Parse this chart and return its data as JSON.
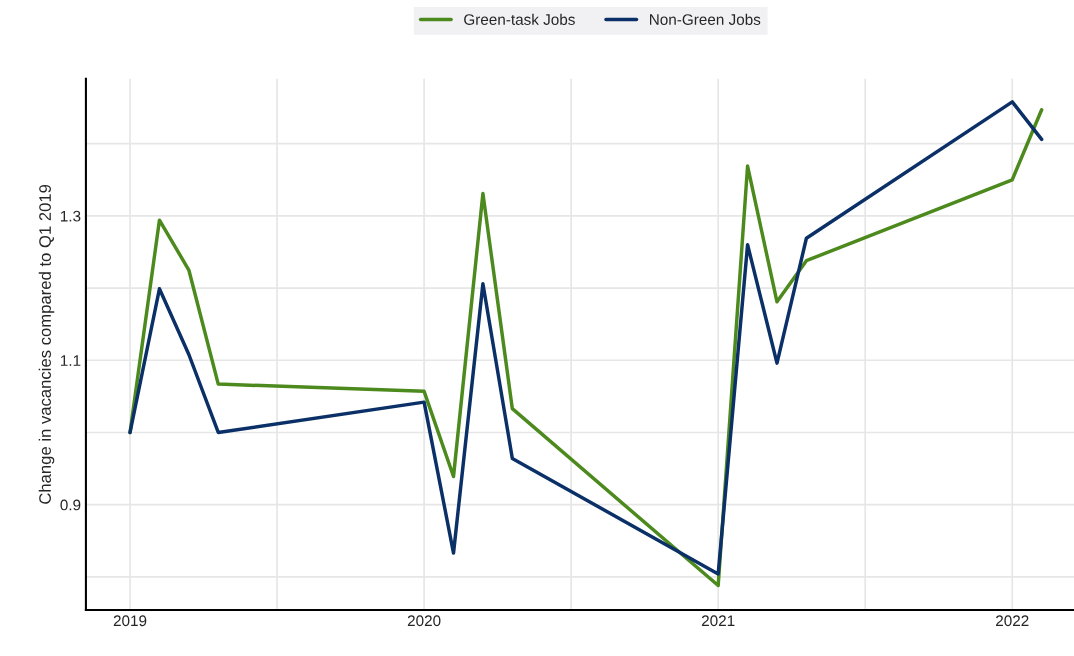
{
  "chart_data": {
    "type": "line",
    "ylabel": "Change in vacancies compared to Q1 2019",
    "series": [
      {
        "name": "Green-task Jobs",
        "color": "#4d8a1e",
        "x": [
          2019.0,
          2019.1,
          2019.2,
          2019.3,
          2020.0,
          2020.1,
          2020.2,
          2020.3,
          2021.0,
          2021.1,
          2021.2,
          2021.3,
          2022.0,
          2022.1
        ],
        "values": [
          1.0,
          1.294,
          1.225,
          1.067,
          1.057,
          0.939,
          1.331,
          1.033,
          0.788,
          1.369,
          1.181,
          1.238,
          1.35,
          1.447
        ]
      },
      {
        "name": "Non-Green Jobs",
        "color": "#0b3067",
        "x": [
          2019.0,
          2019.1,
          2019.2,
          2019.3,
          2020.0,
          2020.1,
          2020.2,
          2020.3,
          2021.0,
          2021.1,
          2021.2,
          2021.3,
          2022.0,
          2022.1
        ],
        "values": [
          1.0,
          1.199,
          1.108,
          1.0,
          1.042,
          0.833,
          1.206,
          0.964,
          0.804,
          1.26,
          1.096,
          1.269,
          1.458,
          1.406
        ]
      }
    ],
    "xlim": [
      2018.85,
      2022.21
    ],
    "ylim": [
      0.754,
      1.49
    ],
    "xticks": [
      2019,
      {
        "value": 2019.5,
        "label": null
      },
      2020,
      {
        "value": 2020.5,
        "label": null
      },
      2021,
      {
        "value": 2021.5,
        "label": null
      },
      2022
    ],
    "yticks": [
      {
        "value": 0.8,
        "label": null
      },
      0.9,
      {
        "value": 1.0,
        "label": null
      },
      1.1,
      {
        "value": 1.2,
        "label": null
      },
      1.3,
      {
        "value": 1.4,
        "label": null
      }
    ],
    "grid": true,
    "legend": "top",
    "marker": "none",
    "line_style": "solid"
  }
}
